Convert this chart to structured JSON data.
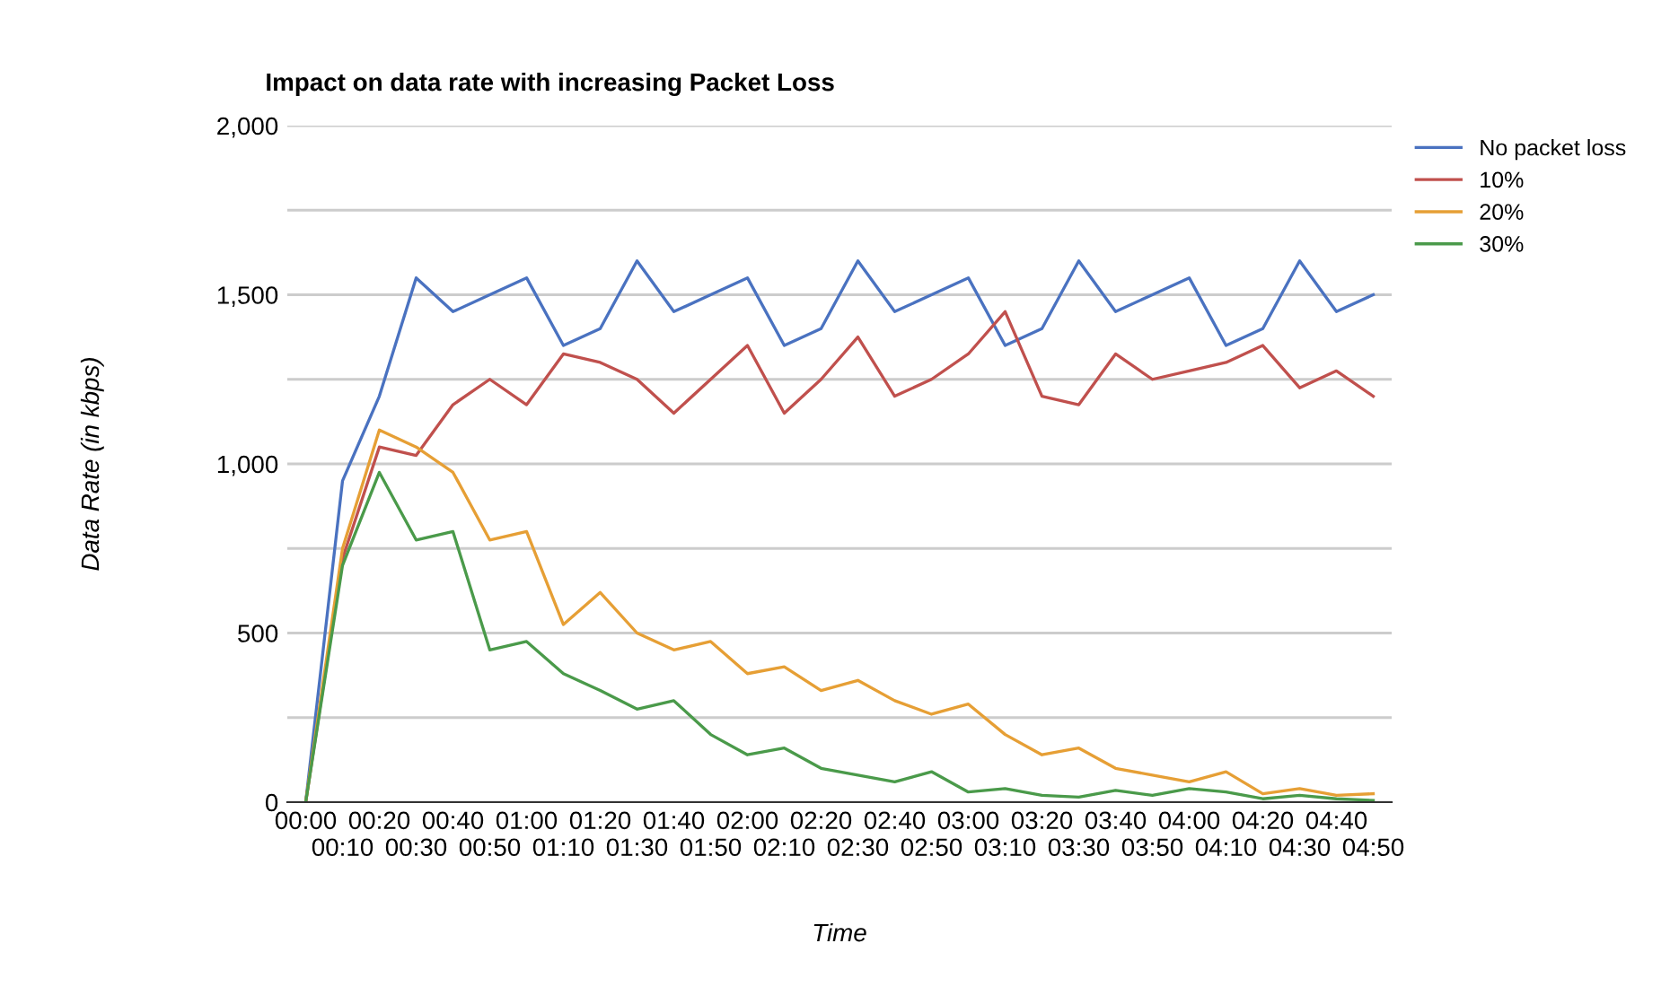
{
  "chart_data": {
    "type": "line",
    "title": "Impact on data rate with increasing Packet Loss",
    "xlabel": "Time",
    "ylabel": "Data Rate (in kbps)",
    "categories": [
      "00:00",
      "00:10",
      "00:20",
      "00:30",
      "00:40",
      "00:50",
      "01:00",
      "01:10",
      "01:20",
      "01:30",
      "01:40",
      "01:50",
      "02:00",
      "02:10",
      "02:20",
      "02:30",
      "02:40",
      "02:50",
      "03:00",
      "03:10",
      "03:20",
      "03:30",
      "03:40",
      "03:50",
      "04:00",
      "04:10",
      "04:20",
      "04:30",
      "04:40",
      "04:50"
    ],
    "series": [
      {
        "name": "No packet loss",
        "color": "#4a72c0",
        "values": [
          0,
          950,
          1200,
          1550,
          1450,
          1500,
          1550,
          1350,
          1400,
          1600,
          1450,
          1500,
          1550,
          1350,
          1400,
          1600,
          1450,
          1500,
          1550,
          1350,
          1400,
          1600,
          1450,
          1500,
          1550,
          1350,
          1400,
          1600,
          1450,
          1500
        ]
      },
      {
        "name": "10%",
        "color": "#c0504d",
        "values": [
          0,
          720,
          1050,
          1025,
          1175,
          1250,
          1175,
          1325,
          1300,
          1250,
          1150,
          1250,
          1350,
          1150,
          1250,
          1375,
          1200,
          1250,
          1325,
          1450,
          1200,
          1175,
          1325,
          1250,
          1275,
          1300,
          1350,
          1225,
          1275,
          1200
        ]
      },
      {
        "name": "20%",
        "color": "#e69f35",
        "values": [
          0,
          750,
          1100,
          1050,
          975,
          775,
          800,
          525,
          620,
          500,
          450,
          475,
          380,
          400,
          330,
          360,
          300,
          260,
          290,
          200,
          140,
          160,
          100,
          80,
          60,
          90,
          25,
          40,
          20,
          25
        ]
      },
      {
        "name": "30%",
        "color": "#4a9a4a",
        "values": [
          0,
          700,
          975,
          775,
          800,
          450,
          475,
          380,
          330,
          275,
          300,
          200,
          140,
          160,
          100,
          80,
          60,
          90,
          30,
          40,
          20,
          15,
          35,
          20,
          40,
          30,
          10,
          20,
          10,
          5
        ]
      }
    ],
    "ylim": [
      0,
      2000
    ],
    "yticks": [
      0,
      {
        "value": 250,
        "label": null
      },
      {
        "value": 500,
        "label": "500"
      },
      {
        "value": 750,
        "label": null
      },
      {
        "value": 1000,
        "label": "1,000"
      },
      {
        "value": 1250,
        "label": null
      },
      {
        "value": 1500,
        "label": "1,500"
      },
      {
        "value": 1750,
        "label": null
      },
      {
        "value": 2000,
        "label": "2,000"
      }
    ],
    "grid": "y",
    "legend": "right",
    "marker": "none",
    "line_style": "solid"
  }
}
